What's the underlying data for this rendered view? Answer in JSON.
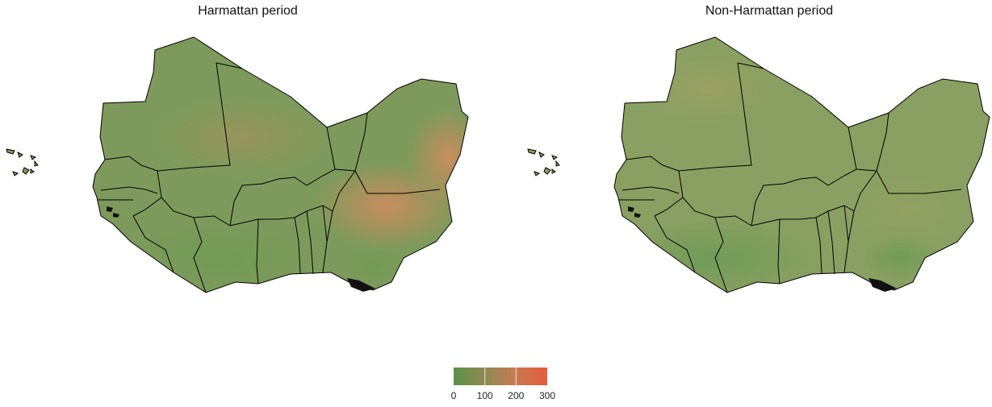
{
  "panels": [
    {
      "title": "Harmattan period"
    },
    {
      "title": "Non-Harmattan period"
    }
  ],
  "legend": {
    "ticks": [
      "0",
      "100",
      "200",
      "300"
    ],
    "min": 0,
    "max": 300,
    "colors": [
      "#5c8f4a",
      "#8e8a52",
      "#c77a52",
      "#e65c3e"
    ]
  },
  "colors": {
    "land_base": "#7d9a5c",
    "land_nonharmattan": "#8aa062",
    "hotspot": "#d58a5e",
    "border": "#000000"
  }
}
